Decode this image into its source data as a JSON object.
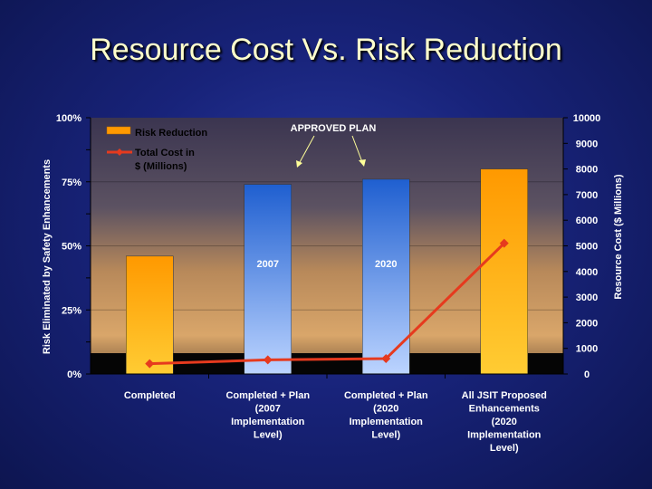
{
  "slide": {
    "title": "Resource Cost Vs. Risk Reduction"
  },
  "chart_data": {
    "type": "bar+line",
    "title": "Resource Cost Vs. Risk Reduction",
    "ylabel_left": "Risk Eliminated by Safety Enhancements",
    "ylabel_right": "Resource Cost ($ Millions)",
    "y_left_ticks": [
      "0%",
      "25%",
      "50%",
      "75%",
      "100%"
    ],
    "y_right_ticks": [
      "0",
      "1000",
      "2000",
      "3000",
      "4000",
      "5000",
      "6000",
      "7000",
      "8000",
      "9000",
      "10000"
    ],
    "ylim_left": [
      0,
      100
    ],
    "ylim_right": [
      0,
      10000
    ],
    "categories": [
      [
        "Completed"
      ],
      [
        "Completed + Plan",
        "(2007",
        "Implementation",
        "Level)"
      ],
      [
        "Completed + Plan",
        "(2020",
        "Implementation",
        "Level)"
      ],
      [
        "All JSIT Proposed",
        "Enhancements",
        "(2020",
        "Implementation",
        "Level)"
      ]
    ],
    "series": [
      {
        "name": "Risk Reduction",
        "kind": "bar",
        "axis": "left",
        "values": [
          46,
          74,
          76,
          80
        ]
      },
      {
        "name": "Total Cost in $ (Millions)",
        "kind": "line",
        "axis": "right",
        "values": [
          400,
          550,
          600,
          5100
        ]
      }
    ],
    "legend": [
      "Risk Reduction",
      "Total Cost in",
      "$ (Millions)"
    ],
    "annotations": {
      "approved_plan": "APPROVED PLAN",
      "bar_labels": [
        "",
        "2007",
        "2020",
        ""
      ]
    },
    "legend_position": "top-left",
    "colors": {
      "orange": "#ff9900",
      "blue": "#1f5fd0",
      "line": "#e63a1e",
      "title": "#ffffcc"
    }
  }
}
